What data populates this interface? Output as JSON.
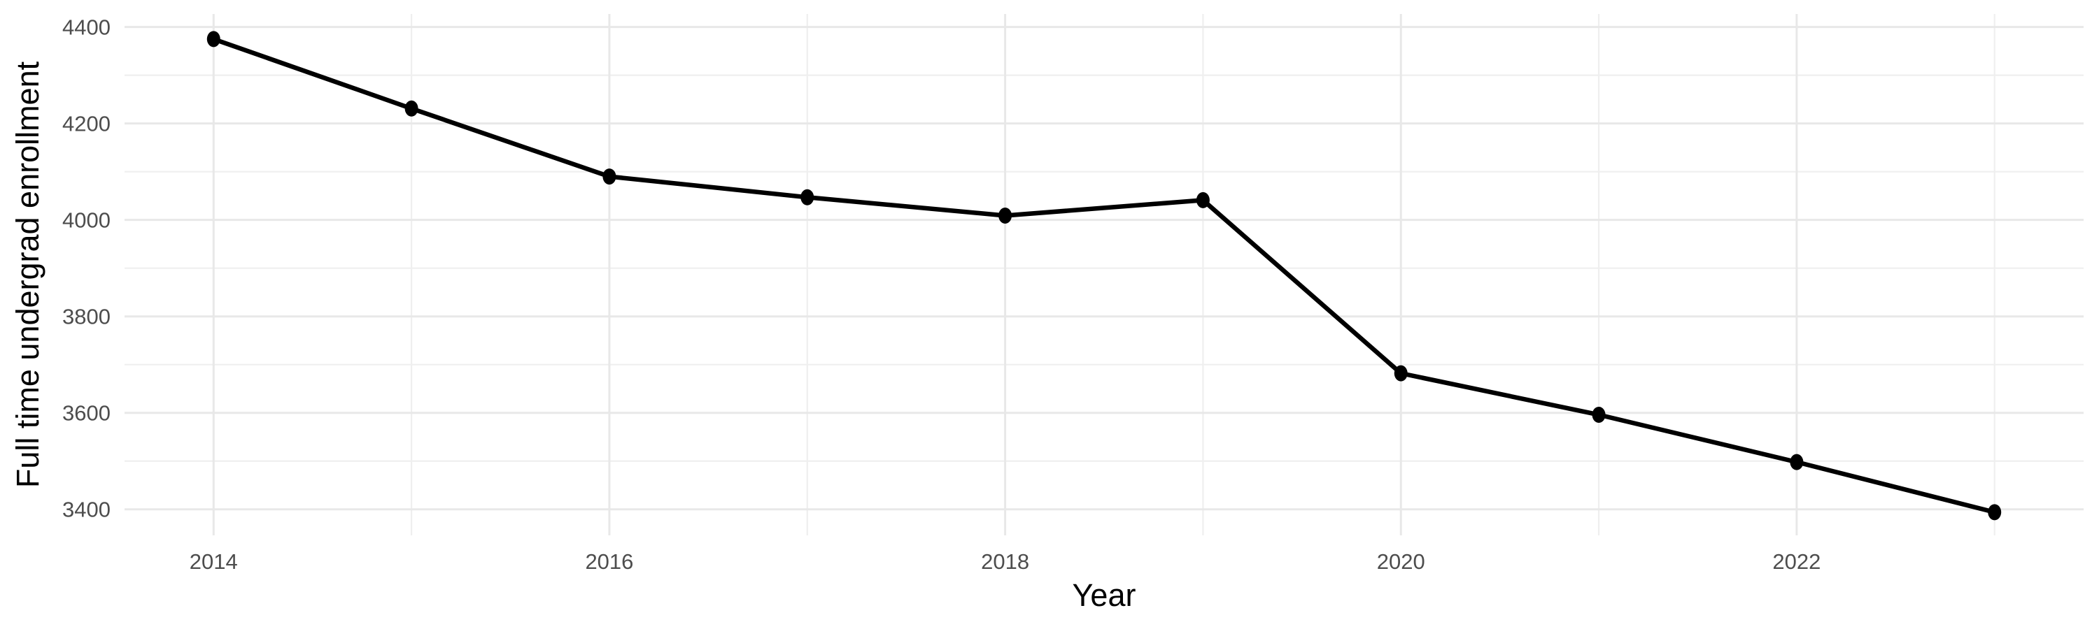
{
  "chart_data": {
    "type": "line",
    "title": "",
    "xlabel": "Year",
    "ylabel": "Full time undergrad enrollment",
    "x": [
      2014,
      2015,
      2016,
      2017,
      2018,
      2019,
      2020,
      2021,
      2022,
      2023
    ],
    "values": [
      4375,
      4231,
      4090,
      4047,
      4009,
      4041,
      3682,
      3596,
      3498,
      3394
    ],
    "series_name": "Full time undergrad enrollment",
    "x_major_ticks": [
      2014,
      2016,
      2018,
      2020,
      2022
    ],
    "x_minor_gridlines": [
      2015,
      2017,
      2019,
      2021,
      2023
    ],
    "y_major_ticks": [
      3400,
      3600,
      3800,
      4000,
      4200,
      4400
    ],
    "y_minor_gridlines": [
      3500,
      3700,
      3900,
      4100,
      4300
    ],
    "xlim": [
      2013.55,
      2023.45
    ],
    "ylim": [
      3346,
      4427
    ],
    "grid": "on",
    "legend": "none",
    "marker": "point"
  },
  "colors": {
    "background": "#FFFFFF",
    "line": "#000000",
    "point": "#000000",
    "grid_major": "#E8E8E8",
    "grid_minor": "#EFEFEF",
    "tick_label": "#4D4D4D",
    "axis_title": "#000000"
  }
}
